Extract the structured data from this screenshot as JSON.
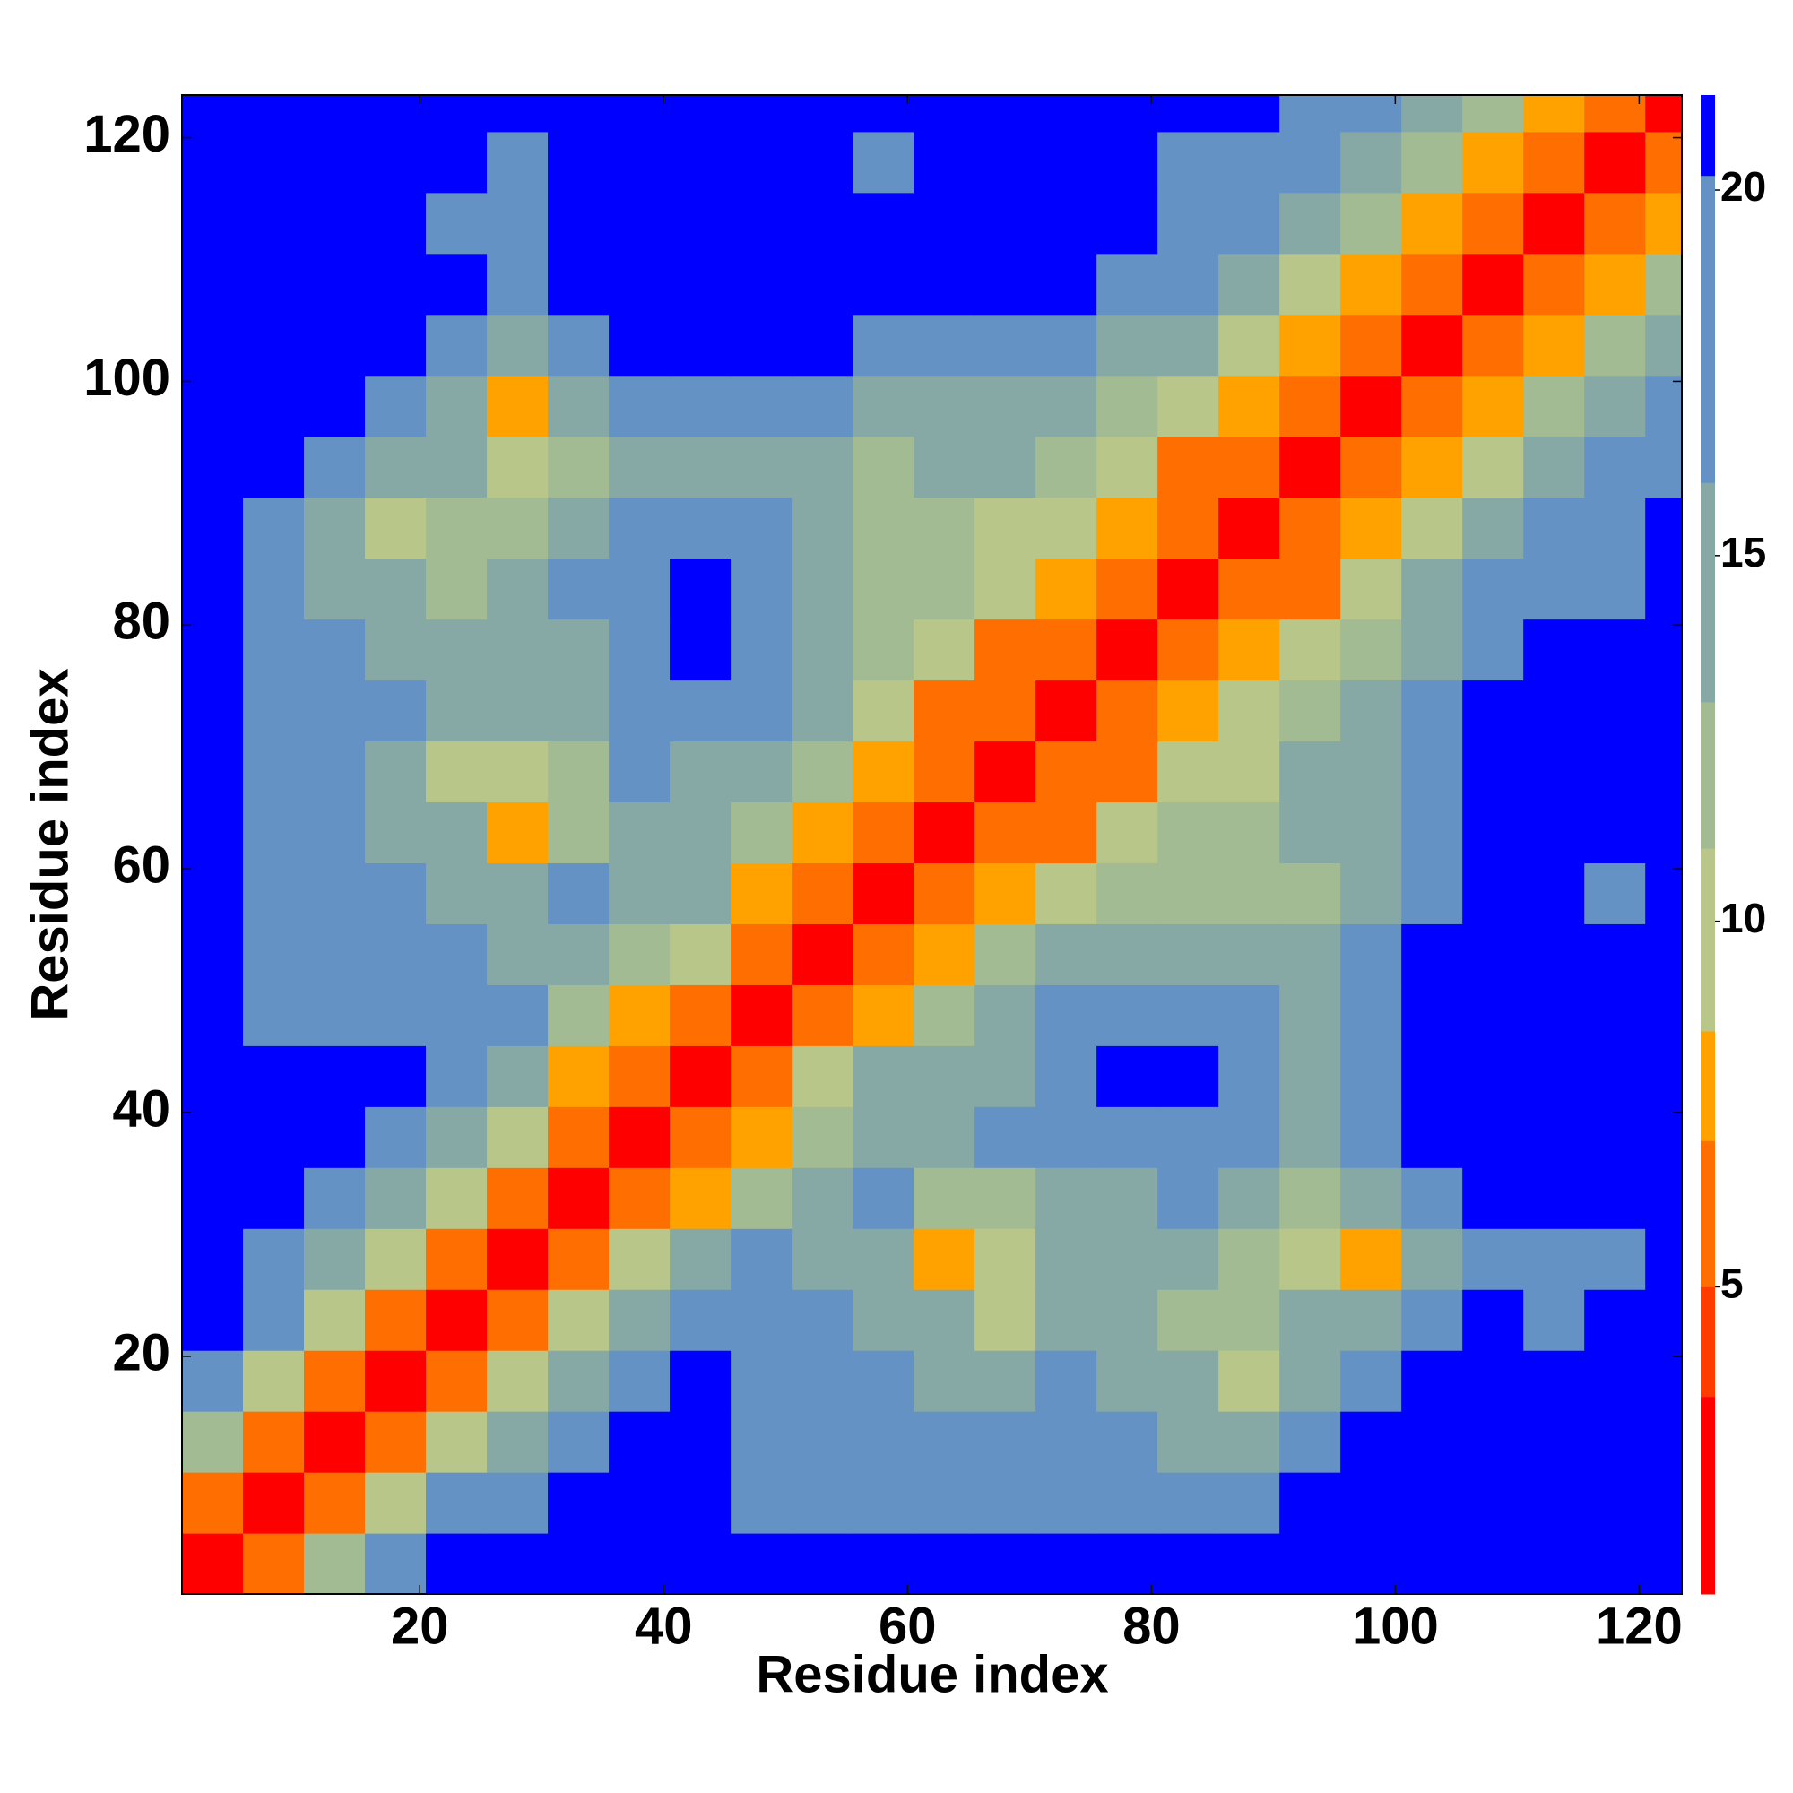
{
  "chart_data": {
    "type": "heatmap",
    "xlabel": "Residue index",
    "ylabel": "Residue index",
    "xlim": [
      0.5,
      123.5
    ],
    "ylim": [
      0.5,
      123.5
    ],
    "xticks": [
      20,
      40,
      60,
      80,
      100,
      120
    ],
    "yticks": [
      20,
      40,
      60,
      80,
      100,
      120
    ],
    "xbins": [
      0.5,
      5.5,
      10.5,
      15.5,
      20.5,
      25.5,
      30.5,
      35.5,
      40.5,
      45.5,
      50.5,
      55.5,
      60.5,
      65.5,
      70.5,
      75.5,
      80.5,
      85.5,
      90.5,
      95.5,
      100.5,
      105.5,
      110.5,
      115.5,
      120.5,
      123.5
    ],
    "ybins": [
      0.5,
      5.5,
      10.5,
      15.5,
      20.5,
      25.5,
      30.5,
      35.5,
      40.5,
      45.5,
      50.5,
      55.5,
      60.5,
      65.5,
      70.5,
      75.5,
      80.5,
      85.5,
      90.5,
      95.5,
      100.5,
      105.5,
      110.5,
      115.5,
      120.5,
      123.5
    ],
    "z": [
      [
        2.5,
        6,
        12,
        18,
        21,
        21,
        21,
        21,
        21,
        21,
        21,
        21,
        21,
        21,
        21,
        21,
        21,
        21,
        21,
        21,
        21,
        21,
        21,
        21,
        21
      ],
      [
        6,
        2.5,
        5,
        9,
        16,
        19,
        21,
        21,
        21,
        20,
        19,
        19,
        18,
        17,
        19,
        18,
        18,
        18,
        21,
        21,
        21,
        21,
        21,
        21,
        21
      ],
      [
        12,
        5,
        2.5,
        5,
        10,
        15,
        19,
        21,
        21,
        20,
        18,
        17,
        17,
        16,
        17,
        16,
        15,
        15,
        19,
        21,
        21,
        21,
        21,
        21,
        21
      ],
      [
        18,
        9,
        5,
        2.5,
        5.5,
        10,
        14,
        19,
        21,
        19,
        17,
        16,
        15,
        15,
        16,
        15,
        13,
        10,
        15,
        18,
        21,
        21,
        21,
        21,
        21
      ],
      [
        21,
        16,
        10,
        5.5,
        2.5,
        5,
        9,
        14,
        18,
        18,
        16,
        15,
        14,
        9,
        13,
        14,
        11,
        11,
        14,
        13,
        18,
        21,
        20,
        21,
        21
      ],
      [
        21,
        19,
        15,
        10,
        5,
        2.5,
        5,
        9,
        13,
        16,
        15,
        14,
        8,
        9,
        13,
        13,
        13,
        12,
        10,
        7,
        15,
        18,
        19,
        19,
        21
      ],
      [
        21,
        21,
        19,
        14,
        9,
        5,
        2.5,
        5,
        8,
        12,
        15,
        16,
        11,
        12,
        14,
        15,
        17,
        13,
        11,
        14,
        19,
        21,
        21,
        21,
        21
      ],
      [
        21,
        21,
        21,
        19,
        14,
        9,
        5,
        2.5,
        5,
        8,
        12,
        14,
        14,
        16,
        17,
        20,
        20,
        16,
        15,
        17,
        21,
        21,
        21,
        21,
        21
      ],
      [
        21,
        21,
        21,
        21,
        18,
        13,
        8,
        5,
        2.5,
        5,
        9,
        13,
        14,
        15,
        17,
        21,
        21,
        17,
        15,
        18,
        21,
        21,
        21,
        21,
        21
      ],
      [
        21,
        20,
        20,
        19,
        18,
        16,
        12,
        8,
        5,
        2.5,
        5,
        8,
        12,
        14,
        16,
        20,
        20,
        16,
        14,
        17,
        21,
        21,
        21,
        21,
        21
      ],
      [
        21,
        19,
        18,
        17,
        16,
        15,
        15,
        12,
        9,
        5,
        2.5,
        5,
        7,
        11,
        13,
        15,
        15,
        14,
        13,
        16,
        21,
        21,
        21,
        21,
        21
      ],
      [
        21,
        19,
        17,
        16,
        15,
        14,
        16,
        14,
        13,
        8,
        5,
        2.5,
        5,
        7,
        10,
        11,
        12,
        11,
        12,
        14,
        18,
        21,
        21,
        20,
        21
      ],
      [
        21,
        18,
        17,
        15,
        14,
        8,
        11,
        14,
        14,
        12,
        7,
        5,
        2.5,
        5,
        6,
        9,
        11,
        11,
        13,
        15,
        19,
        21,
        21,
        21,
        21
      ],
      [
        21,
        17,
        16,
        15,
        9,
        9,
        12,
        16,
        15,
        14,
        11,
        7,
        5,
        2.5,
        5,
        6,
        9,
        10,
        13,
        15,
        19,
        21,
        21,
        21,
        21
      ],
      [
        21,
        19,
        17,
        16,
        13,
        13,
        14,
        17,
        17,
        16,
        13,
        10,
        6,
        5,
        2.5,
        5,
        7,
        9,
        11,
        13,
        17,
        21,
        21,
        21,
        21
      ],
      [
        21,
        18,
        16,
        15,
        14,
        13,
        15,
        20,
        21,
        20,
        15,
        11,
        9,
        6,
        5,
        2.5,
        5,
        7,
        9,
        11,
        15,
        19,
        21,
        21,
        21
      ],
      [
        21,
        18,
        15,
        13,
        11,
        13,
        17,
        20,
        21,
        20,
        15,
        12,
        11,
        9,
        7,
        5,
        2.5,
        5,
        6,
        9,
        13,
        16,
        19,
        20,
        21
      ],
      [
        21,
        18,
        15,
        10,
        11,
        12,
        13,
        16,
        17,
        16,
        14,
        11,
        11,
        10,
        9,
        7,
        5,
        2.5,
        5,
        7,
        10,
        14,
        17,
        20,
        21
      ],
      [
        21,
        21,
        19,
        15,
        14,
        10,
        11,
        15,
        15,
        14,
        13,
        12,
        13,
        13,
        11,
        9,
        6,
        5,
        2.5,
        5,
        7,
        10,
        14,
        18,
        20
      ],
      [
        21,
        21,
        21,
        18,
        13,
        7,
        14,
        17,
        18,
        17,
        16,
        14,
        15,
        15,
        13,
        11,
        9,
        7,
        5,
        2.5,
        5,
        7,
        11,
        14,
        17
      ],
      [
        21,
        21,
        21,
        21,
        18,
        15,
        19,
        21,
        21,
        21,
        21,
        18,
        19,
        19,
        17,
        15,
        13,
        10,
        7,
        5,
        2.5,
        5,
        8,
        12,
        15
      ],
      [
        21,
        21,
        21,
        21,
        21,
        18,
        21,
        21,
        21,
        21,
        21,
        21,
        21,
        21,
        21,
        19,
        16,
        14,
        10,
        7,
        5,
        2.5,
        5,
        8,
        12
      ],
      [
        21,
        21,
        21,
        21,
        20,
        19,
        21,
        21,
        21,
        21,
        21,
        21,
        21,
        21,
        21,
        21,
        19,
        17,
        14,
        11,
        8,
        5,
        2.5,
        5,
        8
      ],
      [
        21,
        21,
        21,
        21,
        21,
        19,
        21,
        21,
        21,
        21,
        21,
        20,
        21,
        21,
        21,
        21,
        20,
        20,
        18,
        14,
        12,
        8,
        5,
        2.5,
        5
      ],
      [
        21,
        21,
        21,
        21,
        21,
        21,
        21,
        21,
        21,
        21,
        21,
        21,
        21,
        21,
        21,
        21,
        21,
        21,
        20,
        17,
        15,
        12,
        8,
        5,
        2.5
      ]
    ],
    "zlim": [
      0.8,
      21.3
    ],
    "zticks": [
      5,
      10,
      15,
      20
    ],
    "colorscale": [
      {
        "from": 0.8,
        "color": "#ff0000"
      },
      {
        "from": 3.5,
        "color": "#ff3c00"
      },
      {
        "from": 5,
        "color": "#ff6e00"
      },
      {
        "from": 7,
        "color": "#ffa200"
      },
      {
        "from": 8.5,
        "color": "#b9c68a"
      },
      {
        "from": 11,
        "color": "#a3bb92"
      },
      {
        "from": 13,
        "color": "#86a9a6"
      },
      {
        "from": 16,
        "color": "#6592c4"
      },
      {
        "from": 20.2,
        "color": "#0000ff"
      }
    ]
  }
}
